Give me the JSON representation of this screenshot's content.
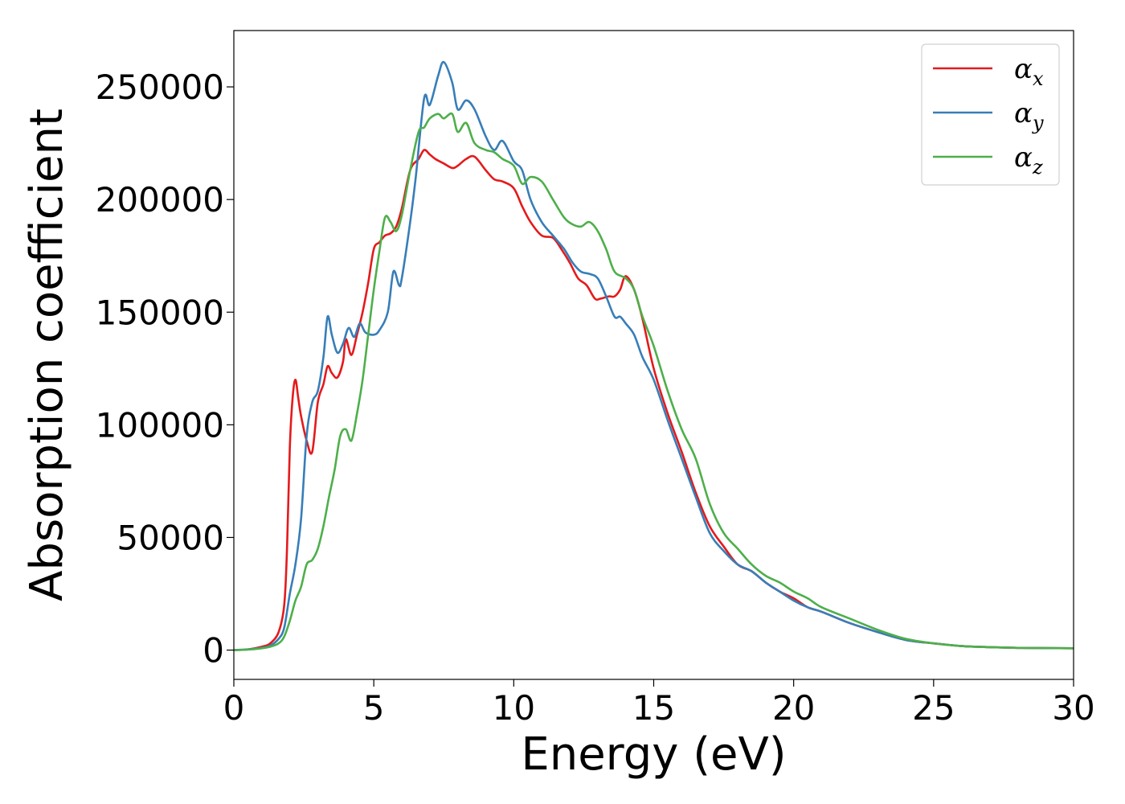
{
  "chart_data": {
    "type": "line",
    "title": "",
    "xlabel": "Energy (eV)",
    "ylabel": "Absorption coefficient",
    "xlim": [
      0,
      30
    ],
    "ylim": [
      -13000,
      275000
    ],
    "xticks": [
      0,
      5,
      10,
      15,
      20,
      25,
      30
    ],
    "yticks": [
      0,
      50000,
      100000,
      150000,
      200000,
      250000
    ],
    "grid": false,
    "legend_position": "top-right",
    "series": [
      {
        "name": "α_x",
        "label_base": "α",
        "label_sub": "x",
        "color": "#e41a1c",
        "x": [
          0,
          0.5,
          1.0,
          1.3,
          1.6,
          1.8,
          1.9,
          2.0,
          2.1,
          2.2,
          2.3,
          2.4,
          2.6,
          2.8,
          3.0,
          3.2,
          3.35,
          3.5,
          3.7,
          3.9,
          4.0,
          4.2,
          4.4,
          4.6,
          4.8,
          5.0,
          5.2,
          5.4,
          5.6,
          5.8,
          6.0,
          6.3,
          6.6,
          6.8,
          7.0,
          7.2,
          7.5,
          7.8,
          8.0,
          8.3,
          8.6,
          9.0,
          9.3,
          9.6,
          10.0,
          10.3,
          10.6,
          11.0,
          11.4,
          11.7,
          12.0,
          12.3,
          12.6,
          12.9,
          13.1,
          13.4,
          13.6,
          13.8,
          14.0,
          14.3,
          14.6,
          15.0,
          15.5,
          16.0,
          16.5,
          17.0,
          17.5,
          18.0,
          18.5,
          19.0,
          19.5,
          20.0,
          20.5,
          21.0,
          22.0,
          23.0,
          24.0,
          25.0,
          26.0,
          27.0,
          28.0,
          30.0
        ],
        "values": [
          0,
          300,
          1500,
          3000,
          8000,
          20000,
          45000,
          90000,
          112000,
          120000,
          112000,
          104000,
          93000,
          88000,
          110000,
          118000,
          126000,
          123000,
          121000,
          128000,
          138000,
          131000,
          140000,
          150000,
          163000,
          178000,
          181000,
          184000,
          185000,
          188000,
          196000,
          213000,
          218000,
          222000,
          220000,
          218000,
          216000,
          214000,
          215000,
          218000,
          219000,
          213000,
          209000,
          208000,
          205000,
          197000,
          190000,
          184000,
          183000,
          178000,
          172000,
          165000,
          162000,
          156000,
          156000,
          157000,
          157000,
          160000,
          166000,
          160000,
          147000,
          125000,
          105000,
          88000,
          70000,
          55000,
          46000,
          38000,
          35000,
          30000,
          26000,
          23000,
          19000,
          17000,
          12000,
          8000,
          4500,
          3000,
          1800,
          1300,
          1000,
          800
        ]
      },
      {
        "name": "α_y",
        "label_base": "α",
        "label_sub": "y",
        "color": "#377eb8",
        "x": [
          0,
          0.5,
          1.0,
          1.3,
          1.6,
          1.8,
          2.0,
          2.2,
          2.4,
          2.6,
          2.8,
          3.0,
          3.2,
          3.35,
          3.5,
          3.7,
          3.9,
          4.1,
          4.3,
          4.5,
          4.7,
          5.0,
          5.2,
          5.5,
          5.7,
          5.9,
          6.0,
          6.3,
          6.5,
          6.8,
          7.0,
          7.3,
          7.5,
          7.8,
          8.0,
          8.3,
          8.6,
          9.0,
          9.3,
          9.6,
          10.0,
          10.3,
          10.6,
          11.0,
          11.4,
          11.8,
          12.1,
          12.4,
          12.7,
          13.0,
          13.3,
          13.6,
          13.8,
          14.0,
          14.3,
          14.6,
          15.0,
          15.5,
          16.0,
          16.5,
          17.0,
          17.5,
          18.0,
          18.5,
          19.0,
          19.5,
          20.0,
          20.5,
          21.0,
          22.0,
          23.0,
          24.0,
          25.0,
          26.0,
          27.0,
          28.0,
          30.0
        ],
        "values": [
          0,
          300,
          1000,
          2000,
          5000,
          10000,
          25000,
          38000,
          58000,
          95000,
          110000,
          115000,
          130000,
          148000,
          140000,
          132000,
          136000,
          143000,
          139000,
          145000,
          141000,
          140000,
          142000,
          150000,
          168000,
          162000,
          165000,
          190000,
          210000,
          245000,
          242000,
          255000,
          261000,
          252000,
          240000,
          244000,
          240000,
          228000,
          222000,
          226000,
          217000,
          213000,
          200000,
          190000,
          184000,
          178000,
          172000,
          168000,
          167000,
          165000,
          157000,
          148000,
          148000,
          145000,
          140000,
          130000,
          120000,
          102000,
          85000,
          68000,
          52000,
          44000,
          38000,
          35000,
          30000,
          26000,
          22000,
          19000,
          17000,
          12000,
          8000,
          4500,
          3000,
          1800,
          1300,
          1000,
          800
        ]
      },
      {
        "name": "α_z",
        "label_base": "α",
        "label_sub": "z",
        "color": "#4daf4a",
        "x": [
          0,
          0.5,
          1.0,
          1.3,
          1.6,
          1.8,
          2.0,
          2.2,
          2.4,
          2.6,
          2.8,
          3.0,
          3.2,
          3.4,
          3.6,
          3.8,
          4.0,
          4.2,
          4.4,
          4.6,
          4.8,
          5.0,
          5.2,
          5.4,
          5.6,
          5.8,
          6.0,
          6.3,
          6.6,
          6.8,
          7.0,
          7.3,
          7.5,
          7.8,
          8.0,
          8.3,
          8.6,
          9.0,
          9.3,
          9.6,
          10.0,
          10.3,
          10.6,
          11.0,
          11.4,
          11.8,
          12.1,
          12.4,
          12.7,
          13.0,
          13.3,
          13.6,
          14.0,
          14.3,
          14.6,
          15.0,
          15.5,
          16.0,
          16.5,
          17.0,
          17.5,
          18.0,
          18.5,
          19.0,
          19.5,
          20.0,
          20.5,
          21.0,
          22.0,
          23.0,
          24.0,
          25.0,
          26.0,
          27.0,
          28.0,
          30.0
        ],
        "values": [
          0,
          200,
          800,
          1500,
          3000,
          6000,
          13000,
          22000,
          28000,
          38000,
          40000,
          45000,
          55000,
          68000,
          80000,
          95000,
          98000,
          93000,
          105000,
          120000,
          140000,
          160000,
          177000,
          192000,
          190000,
          186000,
          193000,
          213000,
          230000,
          232000,
          236000,
          238000,
          236000,
          238000,
          230000,
          234000,
          225000,
          222000,
          221000,
          218000,
          215000,
          207000,
          210000,
          208000,
          200000,
          192000,
          189000,
          188000,
          190000,
          186000,
          178000,
          168000,
          165000,
          160000,
          148000,
          135000,
          115000,
          98000,
          85000,
          65000,
          52000,
          45000,
          38000,
          33000,
          30000,
          26000,
          23000,
          19000,
          14000,
          9000,
          5000,
          3000,
          1800,
          1300,
          1000,
          800
        ]
      }
    ]
  }
}
